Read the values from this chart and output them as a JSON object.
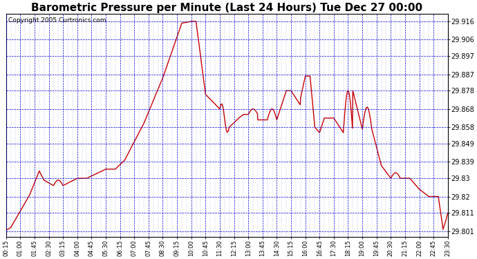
{
  "title": "Barometric Pressure per Minute (Last 24 Hours) Tue Dec 27 00:00",
  "copyright": "Copyright 2005 Curtronics.com",
  "ylabel_values": [
    29.801,
    29.811,
    29.82,
    29.83,
    29.839,
    29.849,
    29.858,
    29.868,
    29.878,
    29.887,
    29.897,
    29.906,
    29.916
  ],
  "ylim": [
    29.798,
    29.92
  ],
  "x_tick_labels": [
    "00:15",
    "01:00",
    "01:45",
    "02:30",
    "03:15",
    "04:00",
    "04:45",
    "05:30",
    "06:15",
    "07:00",
    "07:45",
    "08:30",
    "09:15",
    "10:00",
    "10:45",
    "11:30",
    "12:15",
    "13:00",
    "13:45",
    "14:30",
    "15:15",
    "16:00",
    "16:45",
    "17:30",
    "18:15",
    "19:00",
    "19:45",
    "20:30",
    "21:15",
    "22:00",
    "22:45",
    "23:30"
  ],
  "background_color": "#ffffff",
  "plot_bg_color": "#ffffff",
  "grid_color": "#0000cc",
  "line_color": "#cc0000",
  "title_fontsize": 11,
  "copyright_fontsize": 6.5,
  "tick_fontsize": 7,
  "xtick_fontsize": 6,
  "line_width": 1.0
}
